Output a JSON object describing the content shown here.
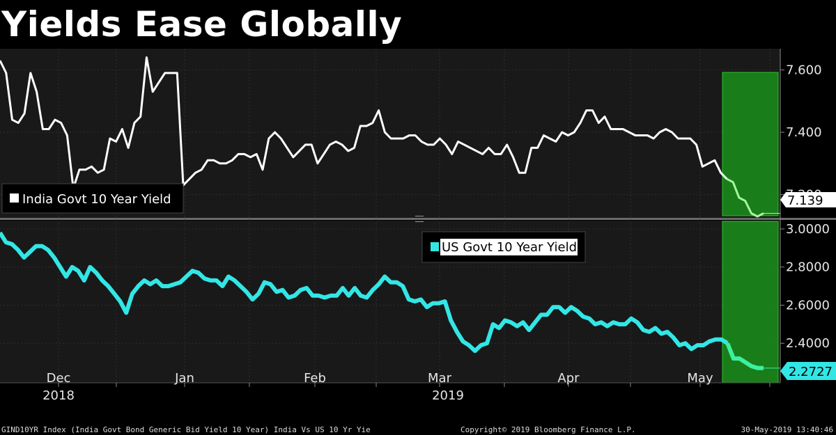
{
  "title": "Yields Ease Globally",
  "colors": {
    "background": "#000000",
    "panel": "#191919",
    "india_line": "#ffffff",
    "india_highlight": "#a8f5a0",
    "us_line": "#33e6e6",
    "us_highlight": "#3df0a0",
    "highlight_box": "#1a8a1a",
    "divider": "#6b6b6b"
  },
  "chart_data": [
    {
      "type": "line",
      "legend": "India Govt 10 Year Yield",
      "ylim": [
        7.15,
        7.65
      ],
      "yticks": [
        7.2,
        7.4,
        7.6
      ],
      "ytick_labels": [
        "7.200",
        "7.400",
        "7.600"
      ],
      "last_value": "7.139",
      "series": [
        {
          "values": [
            7.63,
            7.59,
            7.44,
            7.43,
            7.46,
            7.59,
            7.53,
            7.41,
            7.41,
            7.44,
            7.43,
            7.39,
            7.22,
            7.28,
            7.28,
            7.29,
            7.27,
            7.28,
            7.38,
            7.37,
            7.41,
            7.35,
            7.43,
            7.45,
            7.64,
            7.53,
            7.56,
            7.59,
            7.59,
            7.59,
            7.23,
            7.25,
            7.27,
            7.28,
            7.31,
            7.31,
            7.3,
            7.3,
            7.31,
            7.33,
            7.33,
            7.32,
            7.33,
            7.28,
            7.38,
            7.4,
            7.38,
            7.35,
            7.32,
            7.34,
            7.36,
            7.36,
            7.3,
            7.33,
            7.36,
            7.37,
            7.36,
            7.34,
            7.35,
            7.42,
            7.42,
            7.43,
            7.47,
            7.4,
            7.38,
            7.38,
            7.38,
            7.39,
            7.39,
            7.37,
            7.36,
            7.36,
            7.38,
            7.36,
            7.33,
            7.37,
            7.36,
            7.35,
            7.34,
            7.33,
            7.35,
            7.33,
            7.33,
            7.36,
            7.32,
            7.27,
            7.27,
            7.35,
            7.35,
            7.39,
            7.38,
            7.37,
            7.4,
            7.39,
            7.4,
            7.43,
            7.47,
            7.47,
            7.43,
            7.45,
            7.41,
            7.41,
            7.41,
            7.4,
            7.39,
            7.39,
            7.39,
            7.38,
            7.4,
            7.41,
            7.4,
            7.38,
            7.38,
            7.38,
            7.36,
            7.29,
            7.3,
            7.31,
            7.27,
            7.25,
            7.24,
            7.19,
            7.18,
            7.14,
            7.13,
            7.14
          ]
        }
      ]
    },
    {
      "type": "line",
      "legend": "US Govt 10 Year Yield",
      "ylim": [
        2.2,
        3.04
      ],
      "yticks": [
        2.4,
        2.6,
        2.8,
        3.0
      ],
      "ytick_labels": [
        "2.4000",
        "2.6000",
        "2.8000",
        "3.0000"
      ],
      "last_value": "2.2727",
      "series": [
        {
          "values": [
            2.98,
            2.93,
            2.92,
            2.89,
            2.85,
            2.88,
            2.91,
            2.91,
            2.89,
            2.85,
            2.8,
            2.75,
            2.8,
            2.78,
            2.73,
            2.8,
            2.77,
            2.73,
            2.7,
            2.66,
            2.62,
            2.56,
            2.66,
            2.7,
            2.73,
            2.71,
            2.73,
            2.7,
            2.7,
            2.71,
            2.72,
            2.75,
            2.78,
            2.77,
            2.74,
            2.73,
            2.73,
            2.7,
            2.75,
            2.73,
            2.7,
            2.67,
            2.63,
            2.66,
            2.72,
            2.71,
            2.67,
            2.68,
            2.64,
            2.65,
            2.68,
            2.69,
            2.65,
            2.65,
            2.64,
            2.65,
            2.65,
            2.69,
            2.65,
            2.69,
            2.65,
            2.64,
            2.68,
            2.71,
            2.75,
            2.72,
            2.72,
            2.7,
            2.63,
            2.62,
            2.63,
            2.59,
            2.61,
            2.61,
            2.62,
            2.52,
            2.46,
            2.41,
            2.39,
            2.36,
            2.39,
            2.4,
            2.5,
            2.48,
            2.52,
            2.51,
            2.49,
            2.51,
            2.47,
            2.51,
            2.55,
            2.55,
            2.59,
            2.59,
            2.56,
            2.59,
            2.57,
            2.54,
            2.53,
            2.5,
            2.51,
            2.49,
            2.51,
            2.5,
            2.5,
            2.53,
            2.51,
            2.47,
            2.46,
            2.48,
            2.45,
            2.46,
            2.43,
            2.39,
            2.4,
            2.37,
            2.39,
            2.39,
            2.41,
            2.42,
            2.42,
            2.4,
            2.32,
            2.32,
            2.3,
            2.28,
            2.27,
            2.27
          ]
        }
      ]
    }
  ],
  "x_axis": {
    "months": [
      "Dec",
      "Jan",
      "Feb",
      "Mar",
      "Apr",
      "May"
    ],
    "years": [
      "2018",
      "2019"
    ]
  },
  "footer": {
    "left": "GIND10YR Index (India Govt Bond Generic Bid Yield 10 Year) India Vs US 10 Yr Yie",
    "center": "Copyright© 2019 Bloomberg Finance L.P.",
    "right": "30-May-2019 13:40:46"
  }
}
